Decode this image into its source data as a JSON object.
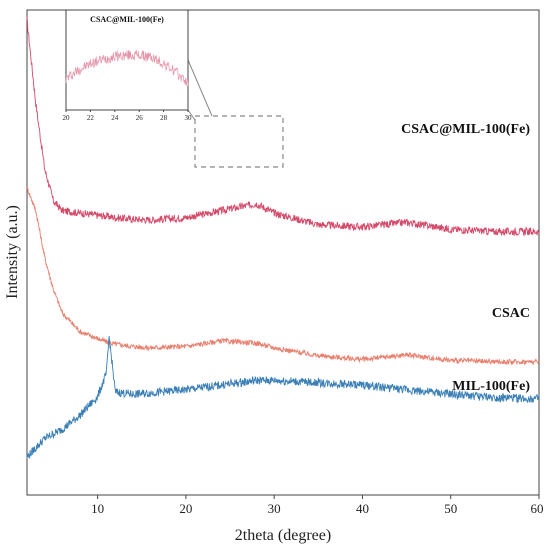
{
  "chart_data": [
    {
      "type": "line",
      "xlabel": "2theta (degree)",
      "ylabel": "Intensity (a.u.)",
      "xlim": [
        2,
        60
      ],
      "x_ticks": [
        10,
        20,
        30,
        40,
        50,
        60
      ],
      "y_ticks": [],
      "grid": false,
      "x": [
        2,
        3,
        4,
        5,
        6,
        8,
        10,
        11,
        11.3,
        12,
        14,
        16,
        20,
        24,
        28,
        30,
        35,
        40,
        45,
        50,
        55,
        60
      ],
      "series": [
        {
          "name": "CSAC@MIL-100(Fe)",
          "color": "#d44a6a",
          "values": [
            100,
            82,
            68,
            61,
            59,
            58.5,
            58,
            57.8,
            57.7,
            57.5,
            57.2,
            57,
            57.5,
            59,
            60.5,
            58.5,
            56,
            55.5,
            56.5,
            55,
            54.5,
            54.5
          ]
        },
        {
          "name": "CSAC",
          "color": "#e8806e",
          "values": [
            64,
            59,
            49,
            42,
            37,
            33,
            31.5,
            30.8,
            30.6,
            30.3,
            29.8,
            29.5,
            29.8,
            31,
            30.5,
            29.5,
            27.8,
            27,
            28,
            26.8,
            26.5,
            26.5
          ]
        },
        {
          "name": "MIL-100(Fe)",
          "color": "#3a7fb5",
          "values": [
            6,
            8,
            10,
            11,
            12,
            15,
            19,
            24,
            32,
            20,
            19.5,
            19.8,
            20.5,
            21.5,
            22.5,
            22.5,
            22,
            21.5,
            20.5,
            19.5,
            18.8,
            18.5
          ]
        }
      ],
      "annotation": "dashed box around 20-30 degree region of CSAC@MIL-100(Fe)"
    },
    {
      "type": "line",
      "title": "CSAC@MIL-100(Fe)",
      "xlim": [
        20,
        30
      ],
      "x_ticks": [
        20,
        22,
        24,
        26,
        28,
        30
      ],
      "x": [
        20,
        21,
        22,
        23,
        24,
        25,
        26,
        27,
        28,
        29,
        30
      ],
      "series": [
        {
          "name": "CSAC@MIL-100(Fe)",
          "color": "#d44a6a",
          "values": [
            70,
            74,
            77,
            79,
            80.5,
            81,
            81,
            80,
            77,
            73,
            68
          ]
        }
      ]
    }
  ]
}
